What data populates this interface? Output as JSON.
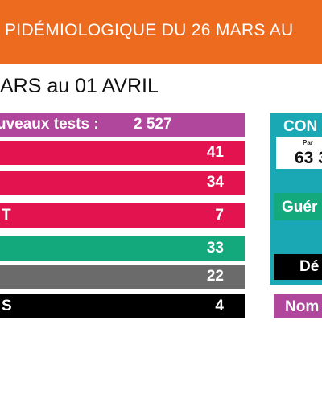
{
  "banner": {
    "title": "PIDÉMIOLOGIQUE DU 26 MARS AU"
  },
  "subtitle": "ARS au 01 AVRIL",
  "bars": [
    {
      "label": "uveaux tests :",
      "value": "2 527",
      "color": "#b0479d"
    },
    {
      "label": "",
      "value": "41",
      "color": "#e3134f"
    },
    {
      "label": "",
      "value": "34",
      "color": "#e3134f"
    },
    {
      "label": "T",
      "value": "7",
      "color": "#e3134f"
    },
    {
      "label": "",
      "value": "33",
      "color": "#13a97c"
    },
    {
      "label": "",
      "value": "22",
      "color": "#6b6b6b"
    },
    {
      "label": "S",
      "value": "4",
      "color": "#000000"
    }
  ],
  "card": {
    "title": "CON",
    "par_label": "Par",
    "number": "63 3",
    "gueri_label": "Guér",
    "deces_label": "Dé",
    "nom_label": "Nom"
  }
}
